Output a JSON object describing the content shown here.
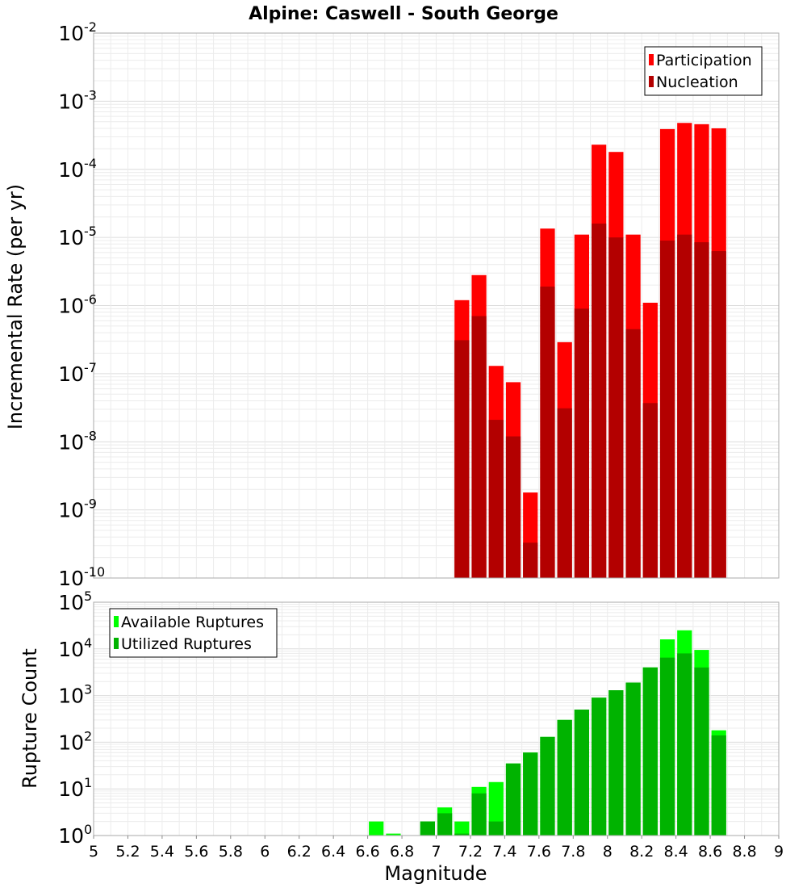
{
  "chart_data": [
    {
      "type": "bar",
      "title": "Alpine: Caswell - South George",
      "ylabel": "Incremental Rate (per yr)",
      "xlabel": "",
      "y_scale": "log",
      "ylim_exp": [
        -10,
        -2
      ],
      "xlim": [
        5,
        9
      ],
      "bin_width": 0.1,
      "legend_position": "top-right",
      "grid": true,
      "series": [
        {
          "name": "Participation",
          "color": "#ff0000",
          "points": [
            {
              "x": 7.15,
              "y": 1.2e-06
            },
            {
              "x": 7.25,
              "y": 2.8e-06
            },
            {
              "x": 7.35,
              "y": 1.3e-07
            },
            {
              "x": 7.45,
              "y": 7.5e-08
            },
            {
              "x": 7.55,
              "y": 1.8e-09
            },
            {
              "x": 7.65,
              "y": 1.35e-05
            },
            {
              "x": 7.75,
              "y": 2.9e-07
            },
            {
              "x": 7.85,
              "y": 1.1e-05
            },
            {
              "x": 7.95,
              "y": 0.00023
            },
            {
              "x": 8.05,
              "y": 0.00018
            },
            {
              "x": 8.15,
              "y": 1.1e-05
            },
            {
              "x": 8.25,
              "y": 1.1e-06
            },
            {
              "x": 8.35,
              "y": 0.00039
            },
            {
              "x": 8.45,
              "y": 0.00048
            },
            {
              "x": 8.55,
              "y": 0.00046
            },
            {
              "x": 8.65,
              "y": 0.0004
            }
          ]
        },
        {
          "name": "Nucleation",
          "color": "#b30000",
          "points": [
            {
              "x": 7.15,
              "y": 3.1e-07
            },
            {
              "x": 7.25,
              "y": 7e-07
            },
            {
              "x": 7.35,
              "y": 2.1e-08
            },
            {
              "x": 7.45,
              "y": 1.2e-08
            },
            {
              "x": 7.55,
              "y": 3.3e-10
            },
            {
              "x": 7.65,
              "y": 1.9e-06
            },
            {
              "x": 7.75,
              "y": 3.1e-08
            },
            {
              "x": 7.85,
              "y": 9e-07
            },
            {
              "x": 7.95,
              "y": 1.6e-05
            },
            {
              "x": 8.05,
              "y": 1e-05
            },
            {
              "x": 8.15,
              "y": 4.5e-07
            },
            {
              "x": 8.25,
              "y": 3.7e-08
            },
            {
              "x": 8.35,
              "y": 9e-06
            },
            {
              "x": 8.45,
              "y": 1.1e-05
            },
            {
              "x": 8.55,
              "y": 8.5e-06
            },
            {
              "x": 8.65,
              "y": 6.3e-06
            }
          ]
        }
      ]
    },
    {
      "type": "bar",
      "title": "",
      "ylabel": "Rupture Count",
      "xlabel": "Magnitude",
      "y_scale": "log",
      "ylim_exp": [
        0,
        5
      ],
      "xlim": [
        5,
        9
      ],
      "bin_width": 0.1,
      "legend_position": "top-left",
      "grid": true,
      "x_ticks": [
        "5",
        "5.2",
        "5.4",
        "5.6",
        "5.8",
        "6",
        "6.2",
        "6.4",
        "6.6",
        "6.8",
        "7",
        "7.2",
        "7.4",
        "7.6",
        "7.8",
        "8",
        "8.2",
        "8.4",
        "8.6",
        "8.8",
        "9"
      ],
      "series": [
        {
          "name": "Available Ruptures",
          "color": "#00ff00",
          "points": [
            {
              "x": 6.65,
              "y": 2
            },
            {
              "x": 6.75,
              "y": 1.1
            },
            {
              "x": 6.95,
              "y": 2
            },
            {
              "x": 7.05,
              "y": 4
            },
            {
              "x": 7.15,
              "y": 2
            },
            {
              "x": 7.25,
              "y": 11
            },
            {
              "x": 7.35,
              "y": 14
            },
            {
              "x": 7.45,
              "y": 35
            },
            {
              "x": 7.55,
              "y": 60
            },
            {
              "x": 7.65,
              "y": 130
            },
            {
              "x": 7.75,
              "y": 300
            },
            {
              "x": 7.85,
              "y": 500
            },
            {
              "x": 7.95,
              "y": 900
            },
            {
              "x": 8.05,
              "y": 1300
            },
            {
              "x": 8.15,
              "y": 1900
            },
            {
              "x": 8.25,
              "y": 4000
            },
            {
              "x": 8.35,
              "y": 16000
            },
            {
              "x": 8.45,
              "y": 25000
            },
            {
              "x": 8.55,
              "y": 9500
            },
            {
              "x": 8.65,
              "y": 180
            }
          ]
        },
        {
          "name": "Utilized Ruptures",
          "color": "#00b300",
          "points": [
            {
              "x": 6.95,
              "y": 2
            },
            {
              "x": 7.05,
              "y": 3
            },
            {
              "x": 7.15,
              "y": 1.1
            },
            {
              "x": 7.25,
              "y": 8
            },
            {
              "x": 7.35,
              "y": 2
            },
            {
              "x": 7.45,
              "y": 35
            },
            {
              "x": 7.55,
              "y": 60
            },
            {
              "x": 7.65,
              "y": 130
            },
            {
              "x": 7.75,
              "y": 300
            },
            {
              "x": 7.85,
              "y": 500
            },
            {
              "x": 7.95,
              "y": 900
            },
            {
              "x": 8.05,
              "y": 1300
            },
            {
              "x": 8.15,
              "y": 1900
            },
            {
              "x": 8.25,
              "y": 4000
            },
            {
              "x": 8.35,
              "y": 6500
            },
            {
              "x": 8.45,
              "y": 8000
            },
            {
              "x": 8.55,
              "y": 4000
            },
            {
              "x": 8.65,
              "y": 140
            }
          ]
        }
      ]
    }
  ]
}
